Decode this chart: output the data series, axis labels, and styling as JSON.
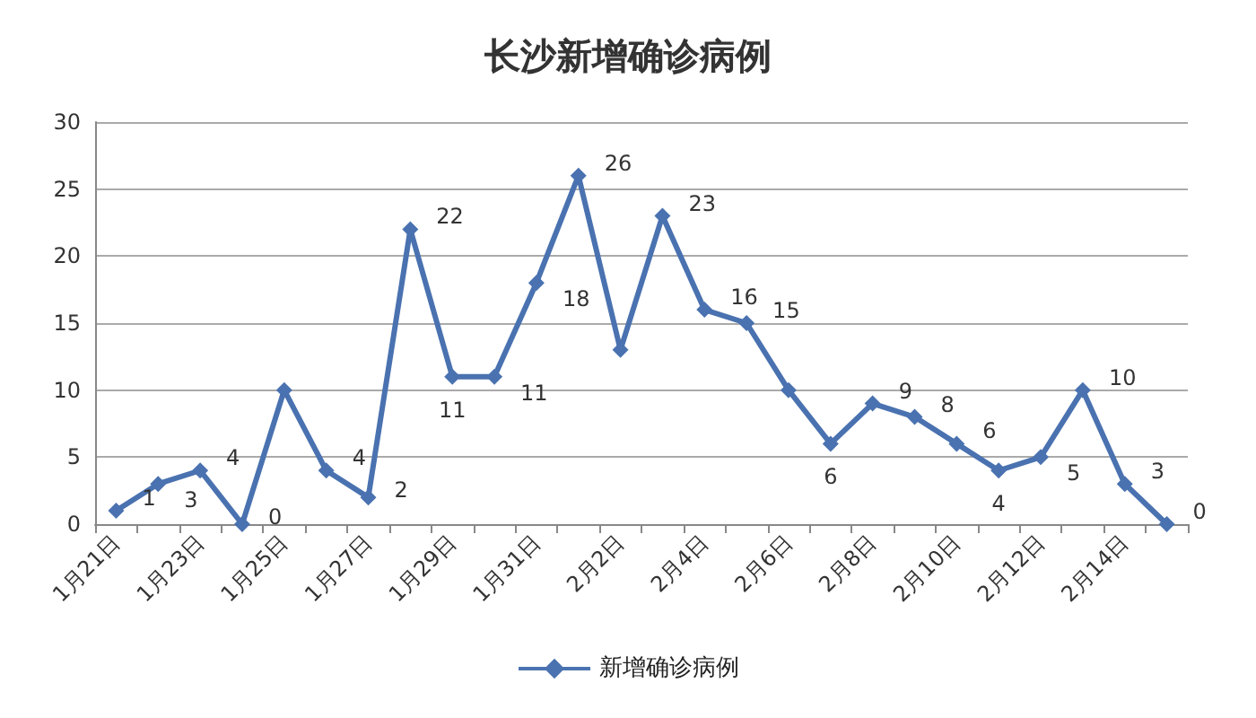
{
  "chart_data": {
    "type": "line",
    "title": "长沙新增确诊病例",
    "categories": [
      "1月21日",
      null,
      "1月23日",
      null,
      "1月25日",
      null,
      "1月27日",
      null,
      "1月29日",
      null,
      "1月31日",
      null,
      "2月2日",
      null,
      "2月4日",
      null,
      "2月6日",
      null,
      "2月8日",
      null,
      "2月10日",
      null,
      "2月12日",
      null,
      "2月14日",
      null
    ],
    "series": [
      {
        "name": "新增确诊病例",
        "color": "#4a72b0",
        "values": [
          1,
          3,
          4,
          0,
          10,
          4,
          2,
          22,
          11,
          11,
          18,
          26,
          13,
          23,
          16,
          15,
          10,
          6,
          9,
          8,
          6,
          4,
          5,
          10,
          3,
          0
        ],
        "value_labels": [
          "1",
          "3",
          "4",
          "0",
          null,
          "4",
          "2",
          "22",
          "11",
          "11",
          "18",
          "26",
          null,
          "23",
          "16",
          "15",
          null,
          "6",
          "9",
          "8",
          "6",
          "4",
          "5",
          "10",
          "3",
          "0"
        ]
      }
    ],
    "ylim": [
      0,
      30
    ],
    "yticks": [
      0,
      5,
      10,
      15,
      20,
      25,
      30
    ],
    "grid": "y",
    "legend": "bottom",
    "marker": "diamond",
    "line_style": "solid"
  }
}
